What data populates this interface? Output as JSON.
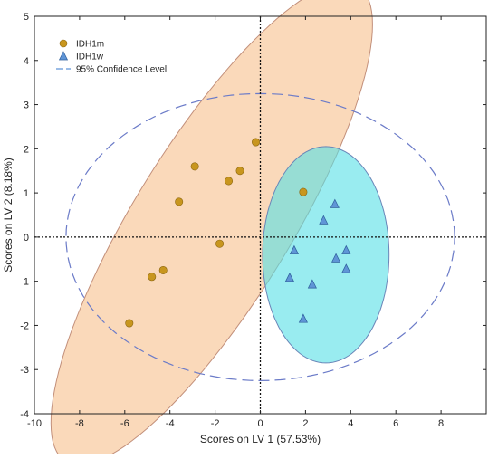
{
  "chart_data": {
    "type": "scatter",
    "xlabel": "Scores on LV 1 (57.53%)",
    "ylabel": "Scores on LV 2 (8.18%)",
    "xlim": [
      -10,
      10
    ],
    "ylim": [
      -4,
      5
    ],
    "xticks": [
      -10,
      -8,
      -6,
      -4,
      -2,
      0,
      2,
      4,
      6,
      8
    ],
    "yticks": [
      -4,
      -3,
      -2,
      -1,
      0,
      1,
      2,
      3,
      4,
      5
    ],
    "grid": false,
    "zero_lines": true,
    "legend_position": "top-left",
    "series": [
      {
        "name": "IDH1m",
        "marker": "circle",
        "color": "#c8961e",
        "points": [
          {
            "x": -0.2,
            "y": 2.15
          },
          {
            "x": -2.9,
            "y": 1.6
          },
          {
            "x": -0.9,
            "y": 1.5
          },
          {
            "x": -1.4,
            "y": 1.27
          },
          {
            "x": 1.9,
            "y": 1.02
          },
          {
            "x": -3.6,
            "y": 0.8
          },
          {
            "x": -1.8,
            "y": -0.15
          },
          {
            "x": -4.3,
            "y": -0.75
          },
          {
            "x": -4.8,
            "y": -0.9
          },
          {
            "x": -5.8,
            "y": -1.95
          }
        ]
      },
      {
        "name": "IDH1w",
        "marker": "triangle",
        "color": "#5f95d6",
        "points": [
          {
            "x": 3.3,
            "y": 0.75
          },
          {
            "x": 2.8,
            "y": 0.38
          },
          {
            "x": 1.5,
            "y": -0.3
          },
          {
            "x": 3.8,
            "y": -0.3
          },
          {
            "x": 3.35,
            "y": -0.48
          },
          {
            "x": 3.8,
            "y": -0.72
          },
          {
            "x": 1.3,
            "y": -0.92
          },
          {
            "x": 2.3,
            "y": -1.07
          },
          {
            "x": 1.9,
            "y": -1.85
          }
        ]
      }
    ],
    "confidence_ellipses": [
      {
        "group": "IDH1m",
        "fill": "#f7c08c",
        "stroke": "#c28f7a",
        "cx": -2.15,
        "cy": 0.3,
        "rx": 8.6,
        "ry": 2.55,
        "angle_deg": 36
      },
      {
        "group": "IDH1w",
        "fill": "#55e0e6",
        "stroke": "#6a86b8",
        "cx": 2.9,
        "cy": -0.4,
        "rx": 2.8,
        "ry": 2.45,
        "angle_deg": 0
      },
      {
        "group": "95% Confidence Level",
        "dashed": true,
        "stroke": "#6b7bc8",
        "cx": 0,
        "cy": 0,
        "rx": 8.6,
        "ry": 3.25,
        "angle_deg": 0
      }
    ],
    "legend": [
      {
        "label": "IDH1m",
        "marker": "circle",
        "color": "#c8961e"
      },
      {
        "label": "IDH1w",
        "marker": "triangle",
        "color": "#5f95d6"
      },
      {
        "label": "95% Confidence Level",
        "marker": "dashed-line",
        "color": "#5f95d6"
      }
    ]
  }
}
